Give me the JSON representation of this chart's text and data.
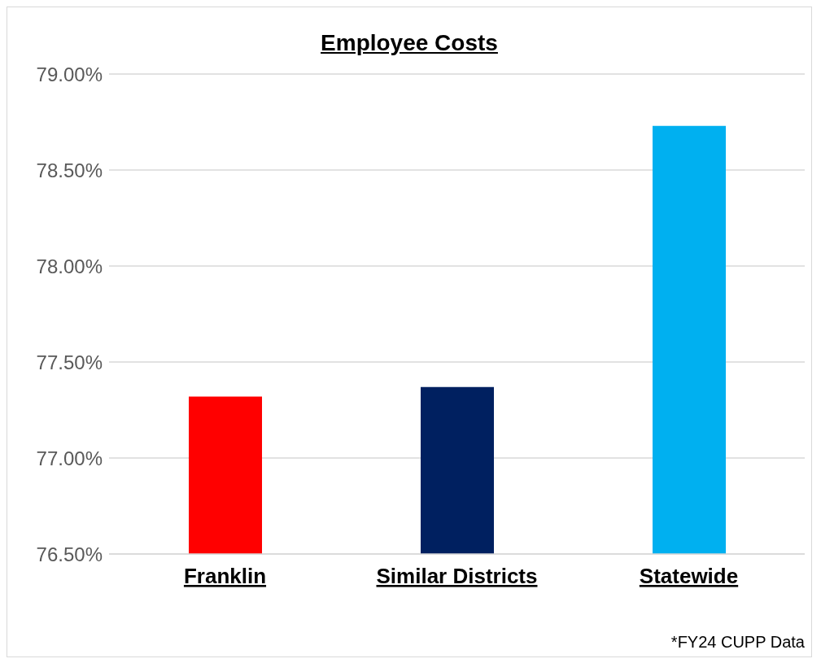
{
  "chart_data": {
    "type": "bar",
    "title": "Employee Costs",
    "categories": [
      "Franklin",
      "Similar Districts",
      "Statewide"
    ],
    "values": [
      77.32,
      77.37,
      78.73
    ],
    "colors": [
      "#ff0000",
      "#002060",
      "#00b0f0"
    ],
    "ylim": [
      76.5,
      79
    ],
    "yticks": [
      {
        "value": 76.5,
        "label": "76.50%"
      },
      {
        "value": 77,
        "label": "77.00%"
      },
      {
        "value": 77.5,
        "label": "77.50%"
      },
      {
        "value": 78,
        "label": "78.00%"
      },
      {
        "value": 78.5,
        "label": "78.50%"
      },
      {
        "value": 79,
        "label": "79.00%"
      }
    ],
    "grid": "y",
    "annotations": [
      "*FY24 CUPP Data"
    ]
  }
}
